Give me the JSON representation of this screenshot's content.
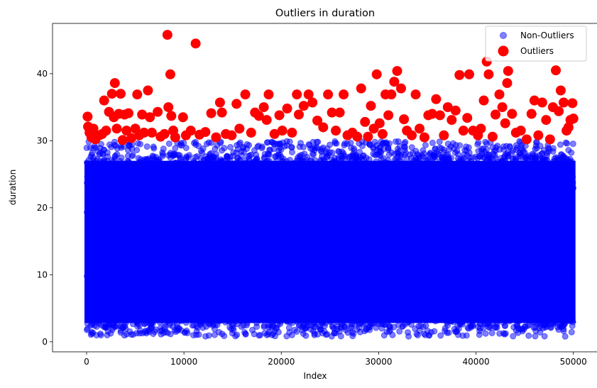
{
  "chart_data": {
    "type": "scatter",
    "title": "Outliers in duration",
    "xlabel": "Index",
    "ylabel": "duration",
    "xlim": [
      -3500,
      52500
    ],
    "ylim": [
      -1.5,
      47.5
    ],
    "xticks": [
      0,
      10000,
      20000,
      30000,
      40000,
      50000
    ],
    "yticks": [
      0,
      10,
      20,
      30,
      40
    ],
    "grid": false,
    "legend_position": "top-right",
    "series": [
      {
        "name": "Non-Outliers",
        "color": "#0000ff",
        "alpha": 0.5,
        "marker": "circle",
        "description": "dense band of ~50000 points",
        "x_range": [
          0,
          49999
        ],
        "y_range": [
          0.8,
          29.9
        ],
        "dense_y_range": [
          2,
          28
        ]
      },
      {
        "name": "Outliers",
        "color": "#ff0000",
        "alpha": 1,
        "marker": "circle",
        "points": [
          [
            100,
            33.6
          ],
          [
            150,
            32.1
          ],
          [
            300,
            31.2
          ],
          [
            500,
            30.5
          ],
          [
            700,
            31.8
          ],
          [
            900,
            30.2
          ],
          [
            1300,
            30.8
          ],
          [
            1600,
            31.0
          ],
          [
            1800,
            36.0
          ],
          [
            2000,
            31.5
          ],
          [
            2300,
            34.3
          ],
          [
            2600,
            37.0
          ],
          [
            2800,
            33.5
          ],
          [
            2900,
            38.6
          ],
          [
            3100,
            31.8
          ],
          [
            3300,
            34.0
          ],
          [
            3500,
            37.0
          ],
          [
            3700,
            30.1
          ],
          [
            3900,
            33.9
          ],
          [
            4100,
            31.5
          ],
          [
            4300,
            34.1
          ],
          [
            4600,
            30.4
          ],
          [
            5000,
            31.8
          ],
          [
            5200,
            36.9
          ],
          [
            5400,
            30.8
          ],
          [
            5700,
            33.9
          ],
          [
            5900,
            31.2
          ],
          [
            6300,
            37.5
          ],
          [
            6500,
            33.5
          ],
          [
            6700,
            31.2
          ],
          [
            7300,
            34.3
          ],
          [
            7600,
            30.6
          ],
          [
            8000,
            31.0
          ],
          [
            8300,
            45.8
          ],
          [
            8400,
            35.0
          ],
          [
            8600,
            39.9
          ],
          [
            8700,
            33.7
          ],
          [
            8900,
            31.5
          ],
          [
            9100,
            30.5
          ],
          [
            9900,
            33.5
          ],
          [
            10200,
            30.8
          ],
          [
            10700,
            31.5
          ],
          [
            11200,
            44.5
          ],
          [
            11600,
            30.9
          ],
          [
            12200,
            31.3
          ],
          [
            12800,
            34.1
          ],
          [
            13300,
            30.5
          ],
          [
            13700,
            35.7
          ],
          [
            13900,
            34.2
          ],
          [
            14300,
            31.0
          ],
          [
            14900,
            30.8
          ],
          [
            15400,
            35.5
          ],
          [
            15700,
            31.8
          ],
          [
            16300,
            36.9
          ],
          [
            16900,
            31.2
          ],
          [
            17300,
            34.2
          ],
          [
            17700,
            33.7
          ],
          [
            18200,
            35.0
          ],
          [
            18500,
            33.1
          ],
          [
            18700,
            36.9
          ],
          [
            19300,
            31.0
          ],
          [
            19800,
            33.8
          ],
          [
            20100,
            31.5
          ],
          [
            20600,
            34.8
          ],
          [
            21100,
            31.2
          ],
          [
            21600,
            36.9
          ],
          [
            21800,
            33.9
          ],
          [
            22300,
            35.2
          ],
          [
            22800,
            36.9
          ],
          [
            23200,
            35.7
          ],
          [
            23700,
            33.0
          ],
          [
            24300,
            32.0
          ],
          [
            24800,
            36.9
          ],
          [
            25200,
            34.2
          ],
          [
            25600,
            31.5
          ],
          [
            26000,
            34.2
          ],
          [
            26400,
            36.9
          ],
          [
            26800,
            30.8
          ],
          [
            27300,
            31.2
          ],
          [
            27800,
            30.6
          ],
          [
            28200,
            37.8
          ],
          [
            28600,
            32.8
          ],
          [
            28900,
            30.6
          ],
          [
            29200,
            35.2
          ],
          [
            29500,
            31.8
          ],
          [
            29800,
            39.9
          ],
          [
            30100,
            32.6
          ],
          [
            30400,
            31.0
          ],
          [
            30700,
            36.9
          ],
          [
            31000,
            33.8
          ],
          [
            31300,
            36.9
          ],
          [
            31600,
            38.8
          ],
          [
            31900,
            40.4
          ],
          [
            32300,
            37.8
          ],
          [
            32600,
            33.2
          ],
          [
            32900,
            31.5
          ],
          [
            33400,
            30.8
          ],
          [
            33800,
            36.9
          ],
          [
            34200,
            31.8
          ],
          [
            34700,
            30.5
          ],
          [
            35100,
            33.8
          ],
          [
            35500,
            34.0
          ],
          [
            35900,
            36.2
          ],
          [
            36300,
            33.8
          ],
          [
            36700,
            30.8
          ],
          [
            37100,
            35.0
          ],
          [
            37500,
            33.1
          ],
          [
            37900,
            34.5
          ],
          [
            38300,
            39.8
          ],
          [
            38700,
            31.5
          ],
          [
            39100,
            33.4
          ],
          [
            39300,
            39.9
          ],
          [
            39700,
            31.5
          ],
          [
            40200,
            30.8
          ],
          [
            40500,
            31.8
          ],
          [
            40800,
            36.0
          ],
          [
            41100,
            41.8
          ],
          [
            41300,
            39.9
          ],
          [
            41700,
            30.6
          ],
          [
            42000,
            33.9
          ],
          [
            42400,
            36.9
          ],
          [
            42700,
            35.0
          ],
          [
            43000,
            32.6
          ],
          [
            43200,
            38.6
          ],
          [
            43300,
            40.4
          ],
          [
            43700,
            34.0
          ],
          [
            44100,
            31.2
          ],
          [
            44600,
            31.5
          ],
          [
            45200,
            30.2
          ],
          [
            45700,
            34.0
          ],
          [
            46000,
            36.0
          ],
          [
            46400,
            30.8
          ],
          [
            46800,
            35.7
          ],
          [
            47200,
            33.1
          ],
          [
            47600,
            30.2
          ],
          [
            47900,
            35.0
          ],
          [
            48200,
            40.5
          ],
          [
            48500,
            34.4
          ],
          [
            48700,
            37.5
          ],
          [
            49000,
            35.7
          ],
          [
            49300,
            31.5
          ],
          [
            49500,
            32.0
          ],
          [
            49700,
            33.1
          ],
          [
            49900,
            35.6
          ],
          [
            50000,
            33.3
          ]
        ]
      }
    ]
  }
}
